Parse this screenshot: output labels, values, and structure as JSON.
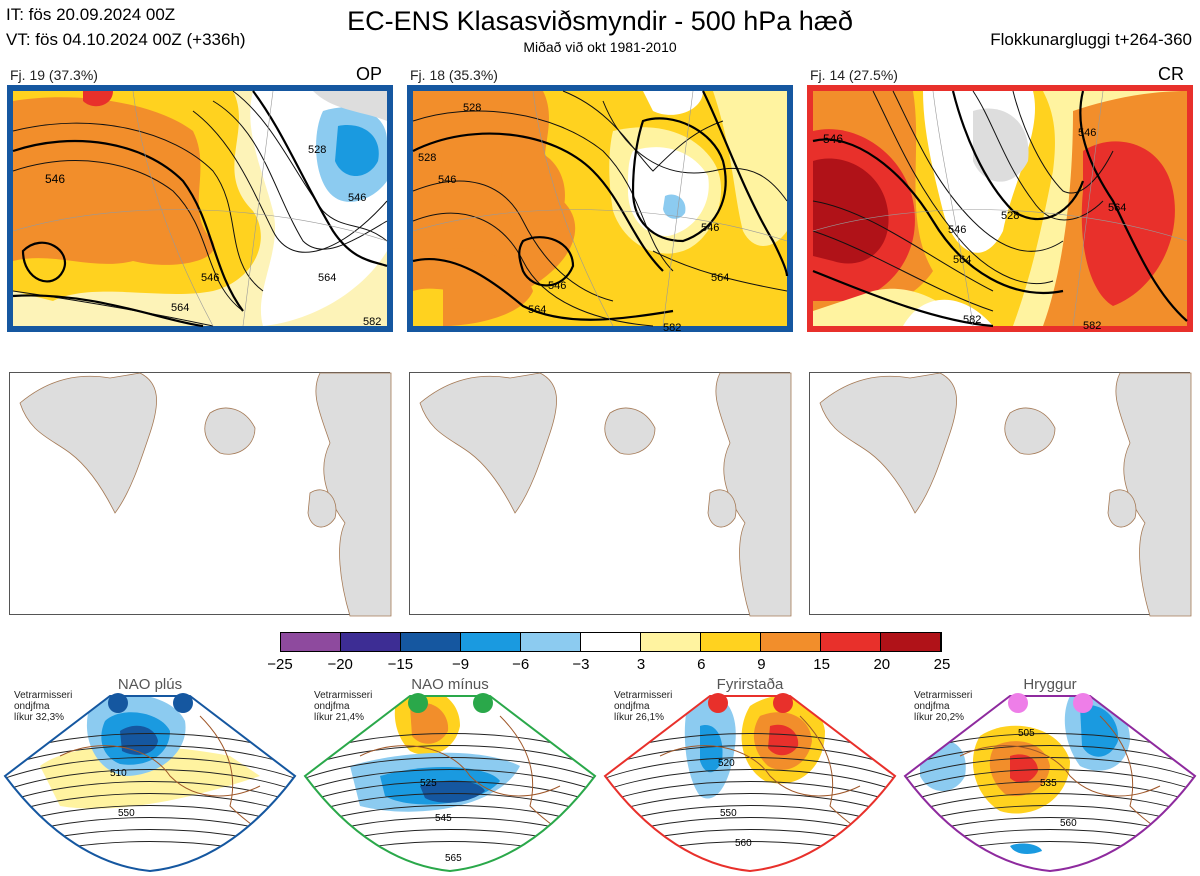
{
  "header": {
    "it_line": "IT: fös 20.09.2024 00Z",
    "vt_line": "VT: fös 04.10.2024 00Z  (+336h)",
    "title": "EC-ENS Klasasviðsmyndir - 500 hPa hæð",
    "subtitle": "Miðað við okt 1981-2010",
    "window": "Flokkunargluggi t+264-360"
  },
  "panels": [
    {
      "label": "Fj. 19 (37.3%)",
      "tag": "OP",
      "border_color": "#1557a0"
    },
    {
      "label": "Fj. 18 (35.3%)",
      "tag": "",
      "border_color": "#1557a0"
    },
    {
      "label": "Fj. 14 (27.5%)",
      "tag": "CR",
      "border_color": "#e8302b"
    }
  ],
  "contour_labels": {
    "p1": [
      "546",
      "528",
      "546",
      "546",
      "564",
      "564",
      "582"
    ],
    "p2": [
      "528",
      "546",
      "528",
      "546",
      "564",
      "546",
      "564",
      "582"
    ],
    "p3": [
      "546",
      "546",
      "564",
      "528",
      "546",
      "564",
      "582",
      "582"
    ]
  },
  "colorbar": {
    "ticks": [
      "−25",
      "−20",
      "−15",
      "−9",
      "−6",
      "−3",
      "3",
      "6",
      "9",
      "15",
      "20",
      "25"
    ],
    "colors": [
      "#8e4a9e",
      "#3d2d94",
      "#1557a0",
      "#1a9ae0",
      "#8ccbf0",
      "#ffffff",
      "#fff3a0",
      "#ffd21f",
      "#f28e2b",
      "#e8302b",
      "#b01218"
    ]
  },
  "regimes": [
    {
      "title": "NAO plús",
      "info": [
        "Vetrarmisseri",
        "ondjfma",
        "líkur 32,3%"
      ],
      "color": "#1557a0",
      "dot_color": "#1557a0",
      "labels": [
        "510",
        "550"
      ]
    },
    {
      "title": "NAO mínus",
      "info": [
        "Vetrarmisseri",
        "ondjfma",
        "líkur 21,4%"
      ],
      "color": "#2aa84a",
      "dot_color": "#2aa84a",
      "labels": [
        "525",
        "545",
        "565"
      ]
    },
    {
      "title": "Fyrirstaða",
      "info": [
        "Vetrarmisseri",
        "ondjfma",
        "líkur 26,1%"
      ],
      "color": "#e8302b",
      "dot_color": "#e8302b",
      "labels": [
        "520",
        "550",
        "560"
      ]
    },
    {
      "title": "Hryggur",
      "info": [
        "Vetrarmisseri",
        "ondjfma",
        "líkur 20,2%"
      ],
      "color": "#8e2a9e",
      "dot_color": "#ee7ee8",
      "labels": [
        "505",
        "535",
        "560"
      ]
    }
  ]
}
